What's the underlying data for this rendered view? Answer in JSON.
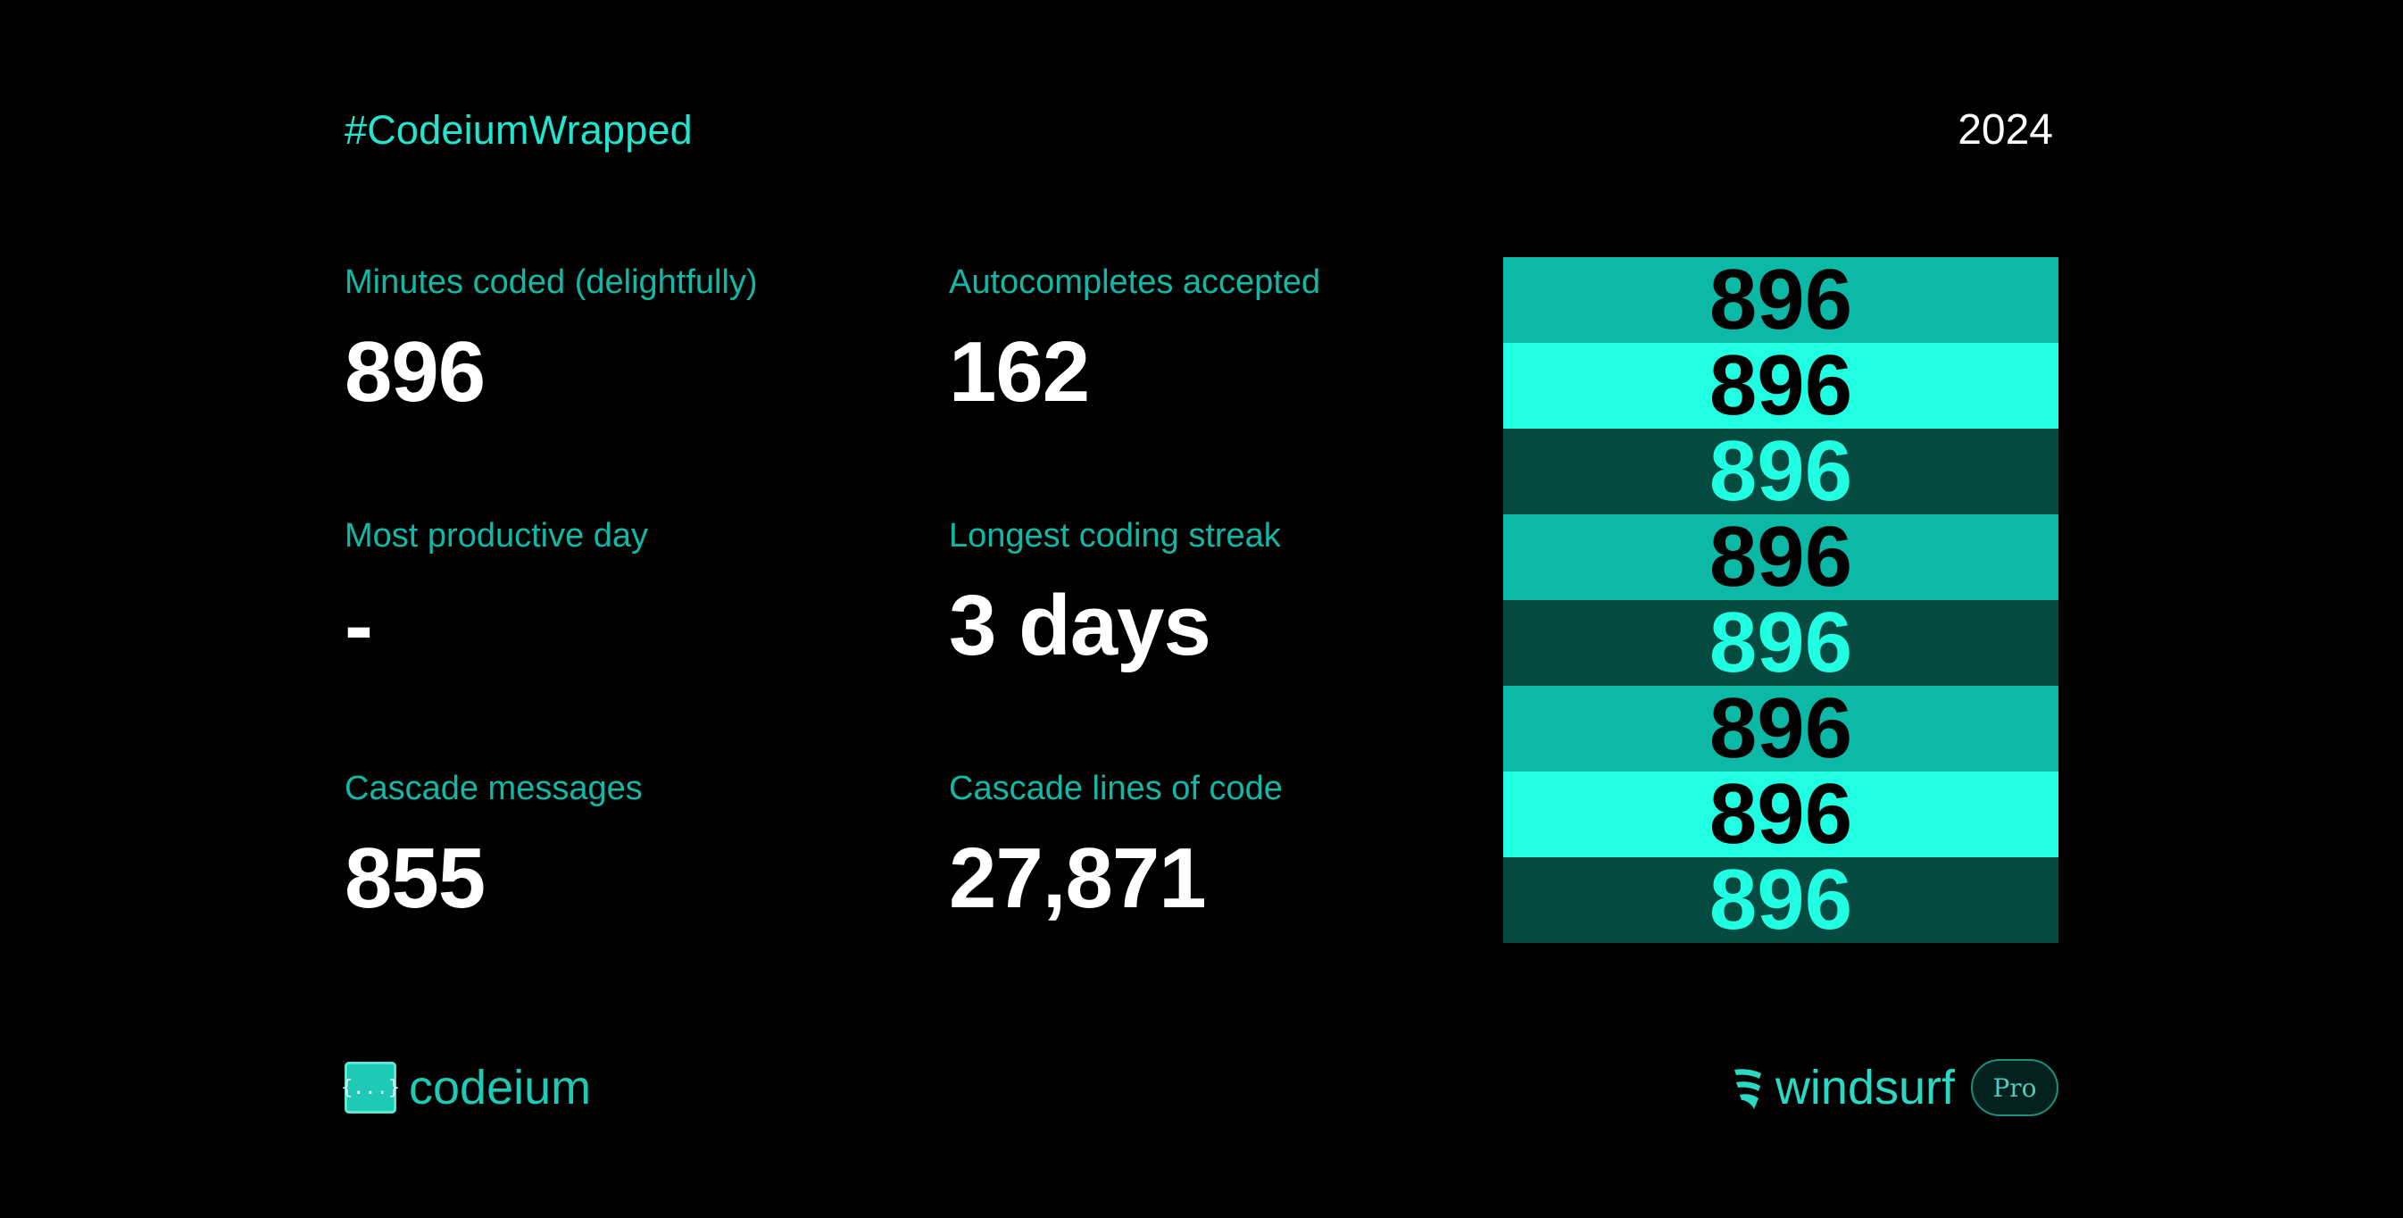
{
  "header": {
    "hashtag": "#CodeiumWrapped",
    "year": "2024"
  },
  "stats": {
    "minutes": {
      "label": "Minutes coded (delightfully)",
      "value": "896"
    },
    "autocompletes": {
      "label": "Autocompletes accepted",
      "value": "162"
    },
    "productive_day": {
      "label": "Most productive day",
      "value": "-"
    },
    "streak": {
      "label": "Longest coding streak",
      "value": "3 days"
    },
    "cascade_messages": {
      "label": "Cascade messages",
      "value": "855"
    },
    "cascade_lines": {
      "label": "Cascade lines of code",
      "value": "27,871"
    }
  },
  "stack": {
    "bands": [
      {
        "text": "896",
        "bg": "#0cb8a6",
        "fg": "#000000"
      },
      {
        "text": "896",
        "bg": "#21ffe3",
        "fg": "#000000"
      },
      {
        "text": "896",
        "bg": "#064b42",
        "fg": "#21ffe3"
      },
      {
        "text": "896",
        "bg": "#0cb8a6",
        "fg": "#000000"
      },
      {
        "text": "896",
        "bg": "#064b42",
        "fg": "#21ffe3"
      },
      {
        "text": "896",
        "bg": "#0cb8a6",
        "fg": "#000000"
      },
      {
        "text": "896",
        "bg": "#21ffe3",
        "fg": "#000000"
      },
      {
        "text": "896",
        "bg": "#064b42",
        "fg": "#21ffe3"
      }
    ]
  },
  "footer": {
    "codeium_mark": "{...}",
    "codeium_text": "codeium",
    "codeium_icon": "codeium-logo-icon",
    "windsurf_icon": "windsurf-logo-icon",
    "windsurf_text": "windsurf",
    "badge": "Pro"
  },
  "colors": {
    "accent": "#20e5d0",
    "label": "#11b8a6",
    "background": "#000000"
  }
}
